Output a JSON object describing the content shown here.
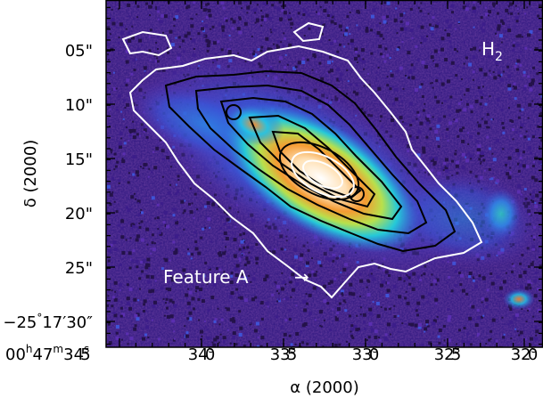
{
  "figure": {
    "panel_label": {
      "main": "H",
      "sub": "2"
    },
    "annotation": {
      "text": "Feature A",
      "arrow": "→"
    },
    "colormap": [
      "#24124a",
      "#3c1d8a",
      "#5a2fb0",
      "#3f53d6",
      "#2f8cea",
      "#22c0e8",
      "#2fd6b0",
      "#62dd6a",
      "#c0e04a",
      "#f1c23e",
      "#f48a2c",
      "#ffd8a8",
      "#ffffff"
    ],
    "contour_colors": {
      "outer": "#ffffff",
      "inner": "#000000"
    }
  },
  "axes": {
    "x": {
      "title_symbol": "α",
      "title_epoch": "(2000)",
      "ticks": [
        {
          "label": "00h47m34.s5",
          "h": "00",
          "m": "47",
          "s": "34",
          "frac": "5",
          "first": true
        },
        {
          "label": "34.s0",
          "s": "34",
          "frac": "0"
        },
        {
          "label": "33.s5",
          "s": "33",
          "frac": "5"
        },
        {
          "label": "33.s0",
          "s": "33",
          "frac": "0"
        },
        {
          "label": "32.s5",
          "s": "32",
          "frac": "5"
        },
        {
          "label": "32.s0",
          "s": "32",
          "frac": "0"
        }
      ]
    },
    "y": {
      "title_symbol": "δ",
      "title_epoch": "(2000)",
      "ticks": [
        {
          "label": "05\"",
          "value": "05"
        },
        {
          "label": "10\"",
          "value": "10"
        },
        {
          "label": "15\"",
          "value": "15"
        },
        {
          "label": "20\"",
          "value": "20"
        },
        {
          "label": "25\"",
          "value": "25"
        },
        {
          "label": "−25°17′30\"",
          "first": true,
          "deg": "−25",
          "arcmin": "17",
          "arcsec": "30"
        }
      ]
    }
  }
}
